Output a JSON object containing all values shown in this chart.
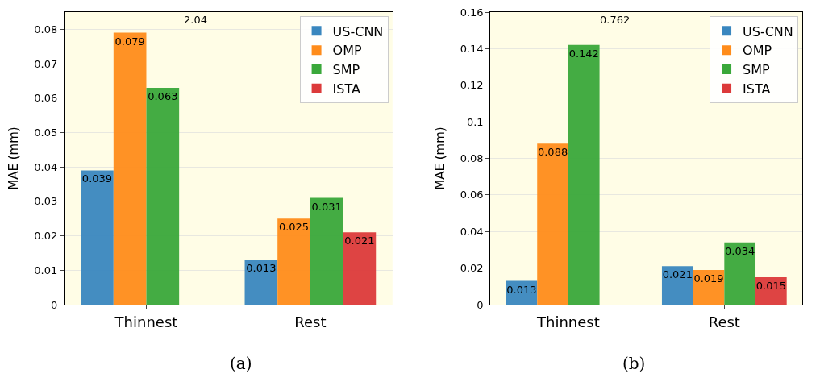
{
  "chart_data": [
    {
      "type": "bar",
      "ylabel": "MAE (mm)",
      "categories": [
        "Thinnest",
        "Rest"
      ],
      "series": [
        {
          "name": "US-CNN",
          "color": "#3a87bf",
          "values": [
            0.039,
            0.013
          ],
          "value_labels": [
            "0.039",
            "0.013"
          ]
        },
        {
          "name": "OMP",
          "color": "#ff8c1a",
          "values": [
            0.079,
            0.025
          ],
          "value_labels": [
            "0.079",
            "0.025"
          ]
        },
        {
          "name": "SMP",
          "color": "#3aa83a",
          "values": [
            0.063,
            0.031
          ],
          "value_labels": [
            "0.063",
            "0.031"
          ]
        },
        {
          "name": "ISTA",
          "color": "#dc3a3a",
          "values": [
            null,
            0.021
          ],
          "value_labels": [
            "2.04",
            "0.021"
          ]
        }
      ],
      "ylim": [
        0,
        0.085
      ],
      "yticks": [
        0,
        0.01,
        0.02,
        0.03,
        0.04,
        0.05,
        0.06,
        0.07,
        0.08
      ],
      "grid": "y",
      "legend": "top right",
      "annotations": [
        "(a)"
      ]
    },
    {
      "type": "bar",
      "ylabel": "MAE (mm)",
      "categories": [
        "Thinnest",
        "Rest"
      ],
      "series": [
        {
          "name": "US-CNN",
          "color": "#3a87bf",
          "values": [
            0.013,
            0.021
          ],
          "value_labels": [
            "0.013",
            "0.021"
          ]
        },
        {
          "name": "OMP",
          "color": "#ff8c1a",
          "values": [
            0.088,
            0.019
          ],
          "value_labels": [
            "0.088",
            "0.019"
          ]
        },
        {
          "name": "SMP",
          "color": "#3aa83a",
          "values": [
            0.142,
            0.034
          ],
          "value_labels": [
            "0.142",
            "0.034"
          ]
        },
        {
          "name": "ISTA",
          "color": "#dc3a3a",
          "values": [
            null,
            0.015
          ],
          "value_labels": [
            "0.762",
            "0.015"
          ]
        }
      ],
      "ylim": [
        0,
        0.16
      ],
      "yticks": [
        0,
        0.02,
        0.04,
        0.06,
        0.08,
        {
          "value": 0.1,
          "label": "0.1"
        },
        0.12,
        0.14,
        0.16
      ],
      "grid": "y",
      "legend": "top right",
      "annotations": [
        "(b)"
      ]
    }
  ]
}
